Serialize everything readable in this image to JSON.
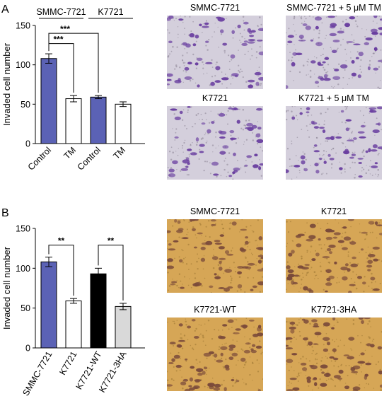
{
  "panels": [
    {
      "letter": "A",
      "groups": [
        {
          "label": "SMMC-7721",
          "spans": [
            0,
            1
          ]
        },
        {
          "label": "K7721",
          "spans": [
            2,
            3
          ]
        }
      ],
      "photos": [
        {
          "title": "SMMC-7721",
          "stain": "purple"
        },
        {
          "title": "SMMC-7721 + 5 μM TM",
          "stain": "purple"
        },
        {
          "title": "K7721",
          "stain": "purple"
        },
        {
          "title": "K7721 + 5 μM TM",
          "stain": "purple"
        }
      ]
    },
    {
      "letter": "B",
      "photos": [
        {
          "title": "SMMC-7721",
          "stain": "brown"
        },
        {
          "title": "K7721",
          "stain": "brown"
        },
        {
          "title": "K7721-WT",
          "stain": "brown"
        },
        {
          "title": "K7721-3HA",
          "stain": "brown"
        }
      ]
    }
  ],
  "colors": {
    "blue": "#5b62b5",
    "white": "#ffffff",
    "black": "#000000",
    "gray": "#d9d9d9",
    "purple_bg": "#d4cfdc",
    "purple_cell": "#6a3fa0",
    "brown_bg": "#d6a656",
    "brown_cell": "#7a4a3a"
  },
  "chart_data": [
    {
      "type": "bar",
      "categories": [
        "Control",
        "TM",
        "Control",
        "TM"
      ],
      "values": [
        108,
        57,
        59,
        50
      ],
      "errors": [
        6,
        4,
        2,
        3
      ],
      "bar_colors": [
        "#5b62b5",
        "#ffffff",
        "#5b62b5",
        "#ffffff"
      ],
      "ylabel": "Invaded cell number",
      "ylim": [
        0,
        150
      ],
      "yticks": [
        0,
        50,
        100,
        150
      ],
      "significance": [
        {
          "from": 0,
          "to": 1,
          "label": "***"
        },
        {
          "from": 0,
          "to": 2,
          "label": "***"
        }
      ]
    },
    {
      "type": "bar",
      "categories": [
        "SMMC-7721",
        "K7721",
        "K7721-WT",
        "K7721-3HA"
      ],
      "values": [
        108,
        59,
        93,
        52
      ],
      "errors": [
        6,
        3,
        7,
        4
      ],
      "bar_colors": [
        "#5b62b5",
        "#ffffff",
        "#000000",
        "#d9d9d9"
      ],
      "ylabel": "Invaded cell number",
      "ylim": [
        0,
        150
      ],
      "yticks": [
        0,
        50,
        100,
        150
      ],
      "significance": [
        {
          "from": 0,
          "to": 1,
          "label": "**"
        },
        {
          "from": 2,
          "to": 3,
          "label": "**"
        }
      ]
    }
  ]
}
